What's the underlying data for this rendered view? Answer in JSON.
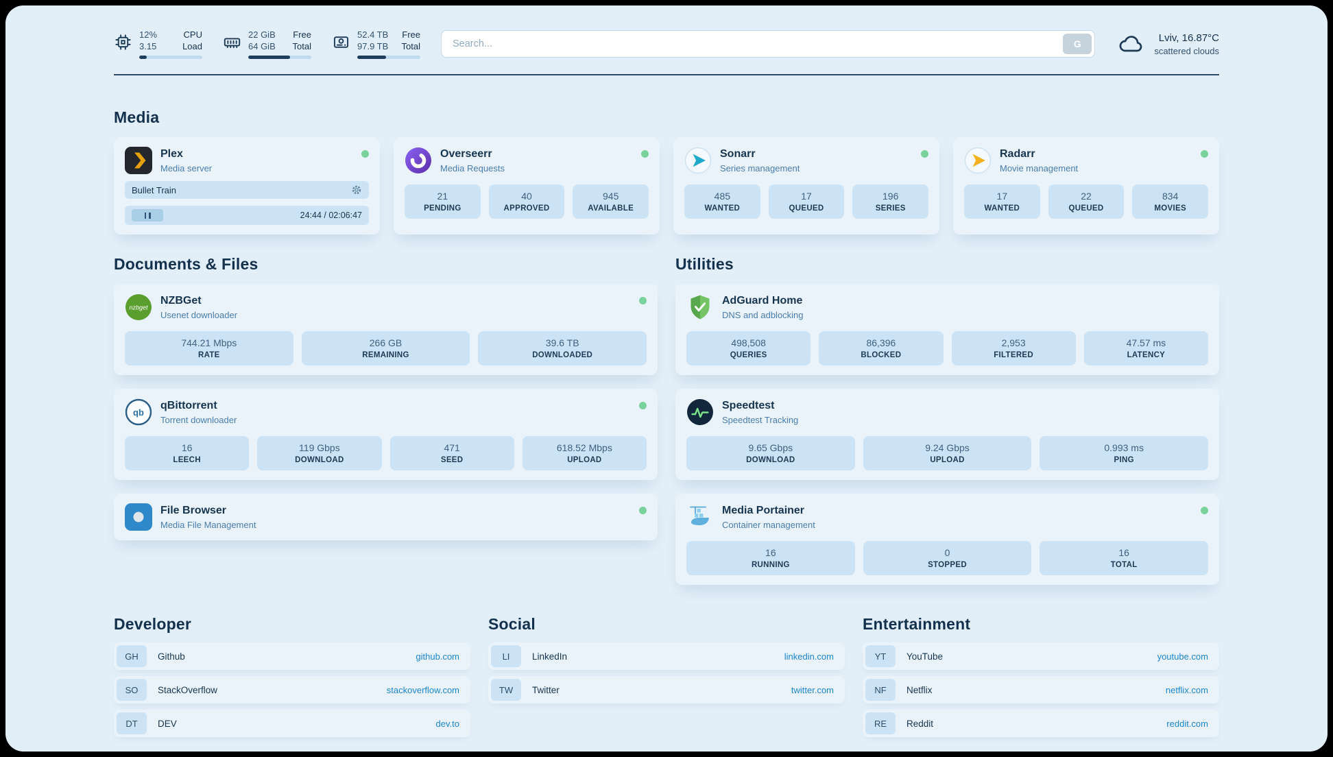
{
  "colors": {
    "page_bg": "#e2eef8",
    "card_bg": "#eaf3fa",
    "stat_bg": "#cbe3f4",
    "text_dark": "#14304c",
    "subtitle": "#4a7dad",
    "link": "#1c86cf",
    "status_green": "#79d29c",
    "bar_fill": "#1e3c5c",
    "plex_amber": "#e5a00d",
    "adguard_green": "#6abd5a"
  },
  "topbar": {
    "cpu": {
      "value1": "12%",
      "value2": "3.15",
      "label1": "CPU",
      "label2": "Load",
      "percent": 12,
      "icon": "cpu-chip-icon"
    },
    "memory": {
      "value1": "22 GiB",
      "value2": "64 GiB",
      "label1": "Free",
      "label2": "Total",
      "percent": 66,
      "icon": "memory-icon"
    },
    "disk": {
      "value1": "52.4 TB",
      "value2": "97.9 TB",
      "label1": "Free",
      "label2": "Total",
      "percent": 46,
      "icon": "disk-icon"
    },
    "search": {
      "placeholder": "Search...",
      "provider_button": "G"
    },
    "weather": {
      "location": "Lviv, 16.87°C",
      "condition": "scattered clouds",
      "icon": "cloud-icon"
    }
  },
  "media": {
    "title": "Media",
    "plex": {
      "name": "Plex",
      "subtitle": "Media server",
      "now_playing": "Bullet Train",
      "time": "24:44 / 02:06:47"
    },
    "overseerr": {
      "name": "Overseerr",
      "subtitle": "Media Requests",
      "stats": [
        {
          "value": "21",
          "label": "PENDING"
        },
        {
          "value": "40",
          "label": "APPROVED"
        },
        {
          "value": "945",
          "label": "AVAILABLE"
        }
      ]
    },
    "sonarr": {
      "name": "Sonarr",
      "subtitle": "Series management",
      "stats": [
        {
          "value": "485",
          "label": "WANTED"
        },
        {
          "value": "17",
          "label": "QUEUED"
        },
        {
          "value": "196",
          "label": "SERIES"
        }
      ]
    },
    "radarr": {
      "name": "Radarr",
      "subtitle": "Movie management",
      "stats": [
        {
          "value": "17",
          "label": "WANTED"
        },
        {
          "value": "22",
          "label": "QUEUED"
        },
        {
          "value": "834",
          "label": "MOVIES"
        }
      ]
    }
  },
  "documents": {
    "title": "Documents & Files",
    "nzbget": {
      "name": "NZBGet",
      "subtitle": "Usenet downloader",
      "stats": [
        {
          "value": "744.21 Mbps",
          "label": "RATE"
        },
        {
          "value": "266 GB",
          "label": "REMAINING"
        },
        {
          "value": "39.6 TB",
          "label": "DOWNLOADED"
        }
      ]
    },
    "qbittorrent": {
      "name": "qBittorrent",
      "subtitle": "Torrent downloader",
      "stats": [
        {
          "value": "16",
          "label": "LEECH"
        },
        {
          "value": "119 Gbps",
          "label": "DOWNLOAD"
        },
        {
          "value": "471",
          "label": "SEED"
        },
        {
          "value": "618.52 Mbps",
          "label": "UPLOAD"
        }
      ]
    },
    "filebrowser": {
      "name": "File Browser",
      "subtitle": "Media File Management"
    }
  },
  "utilities": {
    "title": "Utilities",
    "adguard": {
      "name": "AdGuard Home",
      "subtitle": "DNS and adblocking",
      "stats": [
        {
          "value": "498,508",
          "label": "QUERIES"
        },
        {
          "value": "86,396",
          "label": "BLOCKED"
        },
        {
          "value": "2,953",
          "label": "FILTERED"
        },
        {
          "value": "47.57 ms",
          "label": "LATENCY"
        }
      ]
    },
    "speedtest": {
      "name": "Speedtest",
      "subtitle": "Speedtest Tracking",
      "stats": [
        {
          "value": "9.65 Gbps",
          "label": "DOWNLOAD"
        },
        {
          "value": "9.24 Gbps",
          "label": "UPLOAD"
        },
        {
          "value": "0.993 ms",
          "label": "PING"
        }
      ]
    },
    "portainer": {
      "name": "Media Portainer",
      "subtitle": "Container management",
      "stats": [
        {
          "value": "16",
          "label": "RUNNING"
        },
        {
          "value": "0",
          "label": "STOPPED"
        },
        {
          "value": "16",
          "label": "TOTAL"
        }
      ]
    }
  },
  "bookmarks": [
    {
      "title": "Developer",
      "items": [
        {
          "abbr": "GH",
          "name": "Github",
          "link": "github.com"
        },
        {
          "abbr": "SO",
          "name": "StackOverflow",
          "link": "stackoverflow.com"
        },
        {
          "abbr": "DT",
          "name": "DEV",
          "link": "dev.to"
        }
      ]
    },
    {
      "title": "Social",
      "items": [
        {
          "abbr": "LI",
          "name": "LinkedIn",
          "link": "linkedin.com"
        },
        {
          "abbr": "TW",
          "name": "Twitter",
          "link": "twitter.com"
        }
      ]
    },
    {
      "title": "Entertainment",
      "items": [
        {
          "abbr": "YT",
          "name": "YouTube",
          "link": "youtube.com"
        },
        {
          "abbr": "NF",
          "name": "Netflix",
          "link": "netflix.com"
        },
        {
          "abbr": "RE",
          "name": "Reddit",
          "link": "reddit.com"
        }
      ]
    }
  ]
}
